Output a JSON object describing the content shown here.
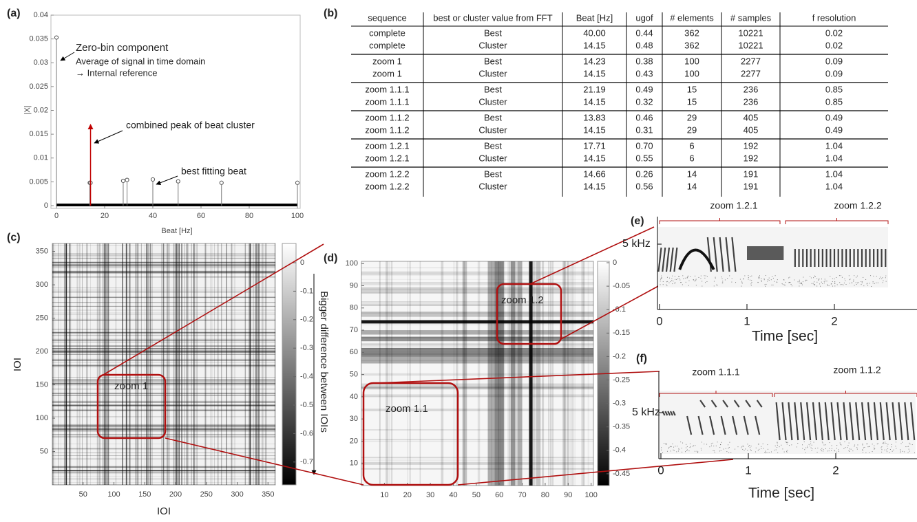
{
  "panel_a": {
    "label": "(a)",
    "chart_data": {
      "type": "stem",
      "xlabel": "Beat [Hz]",
      "ylabel": "|X|",
      "xlim": [
        0,
        100
      ],
      "ylim": [
        0,
        0.04
      ],
      "xticks": [
        0,
        20,
        40,
        60,
        80,
        100
      ],
      "yticks": [
        0,
        0.005,
        0.01,
        0.015,
        0.02,
        0.025,
        0.03,
        0.035,
        0.04
      ],
      "x": [
        0,
        13.83,
        14.15,
        27.7,
        29.3,
        40,
        50.5,
        68.5,
        100
      ],
      "values": [
        0.0353,
        0.0048,
        0.0048,
        0.0052,
        0.0054,
        0.0055,
        0.0051,
        0.0048,
        0.0048
      ],
      "color": "#777777",
      "peak": {
        "x": 14.15,
        "value": 0.0166,
        "color": "#c00000"
      },
      "annotations": [
        "Zero-bin component",
        "Average of signal in time domain",
        "→ Internal reference",
        "combined peak of beat cluster",
        "best fitting beat"
      ]
    }
  },
  "table": {
    "label": "(b)",
    "header": [
      "sequence",
      "best or cluster value from FFT",
      "Beat [Hz]",
      "ugof",
      "# elements",
      "# samples",
      "f resolution"
    ],
    "rows": [
      [
        "complete",
        "Best",
        "40.00",
        "0.44",
        "362",
        "10221",
        "0.02"
      ],
      [
        "complete",
        "Cluster",
        "14.15",
        "0.48",
        "362",
        "10221",
        "0.02"
      ],
      [
        "zoom 1",
        "Best",
        "14.23",
        "0.38",
        "100",
        "2277",
        "0.09"
      ],
      [
        "zoom 1",
        "Cluster",
        "14.15",
        "0.43",
        "100",
        "2277",
        "0.09"
      ],
      [
        "zoom 1.1.1",
        "Best",
        "21.19",
        "0.49",
        "15",
        "236",
        "0.85"
      ],
      [
        "zoom 1.1.1",
        "Cluster",
        "14.15",
        "0.32",
        "15",
        "236",
        "0.85"
      ],
      [
        "zoom 1.1.2",
        "Best",
        "13.83",
        "0.46",
        "29",
        "405",
        "0.49"
      ],
      [
        "zoom 1.1.2",
        "Cluster",
        "14.15",
        "0.31",
        "29",
        "405",
        "0.49"
      ],
      [
        "zoom 1.2.1",
        "Best",
        "17.71",
        "0.70",
        "6",
        "192",
        "1.04"
      ],
      [
        "zoom 1.2.1",
        "Cluster",
        "14.15",
        "0.55",
        "6",
        "192",
        "1.04"
      ],
      [
        "zoom 1.2.2",
        "Best",
        "14.66",
        "0.26",
        "14",
        "191",
        "1.04"
      ],
      [
        "zoom 1.2.2",
        "Cluster",
        "14.15",
        "0.56",
        "14",
        "191",
        "1.04"
      ]
    ]
  },
  "panel_c": {
    "label": "(c)",
    "xlabel": "IOI",
    "ylabel": "IOI",
    "xticks": [
      50,
      100,
      150,
      200,
      250,
      300,
      350
    ],
    "yticks": [
      50,
      100,
      150,
      200,
      250,
      300,
      350
    ],
    "colorbar_ticks": [
      0,
      -0.1,
      -0.2,
      -0.3,
      -0.4,
      -0.5,
      -0.6,
      -0.7
    ],
    "colorbar_label": "Bigger difference between IOIs",
    "zoom": "zoom 1"
  },
  "panel_d": {
    "label": "(d)",
    "xticks": [
      10,
      20,
      30,
      40,
      50,
      60,
      70,
      80,
      90,
      100
    ],
    "yticks": [
      10,
      20,
      30,
      40,
      50,
      60,
      70,
      80,
      90,
      100
    ],
    "colorbar_ticks": [
      0,
      -0.05,
      -0.1,
      -0.15,
      -0.2,
      -0.25,
      -0.3,
      -0.35,
      -0.4,
      -0.45
    ],
    "zooms": [
      "zoom 1.1",
      "zoom 1.2"
    ]
  },
  "panel_e": {
    "label": "(e)",
    "freq_label": "5 kHz",
    "xticks": [
      0,
      1,
      2
    ],
    "xlabel": "Time [sec]",
    "zooms": [
      "zoom 1.2.1",
      "zoom 1.2.2"
    ]
  },
  "panel_f": {
    "label": "(f)",
    "freq_label": "5 kHz",
    "xticks": [
      0,
      1,
      2
    ],
    "xlabel": "Time [sec]",
    "zooms": [
      "zoom 1.1.1",
      "zoom 1.1.2"
    ]
  }
}
